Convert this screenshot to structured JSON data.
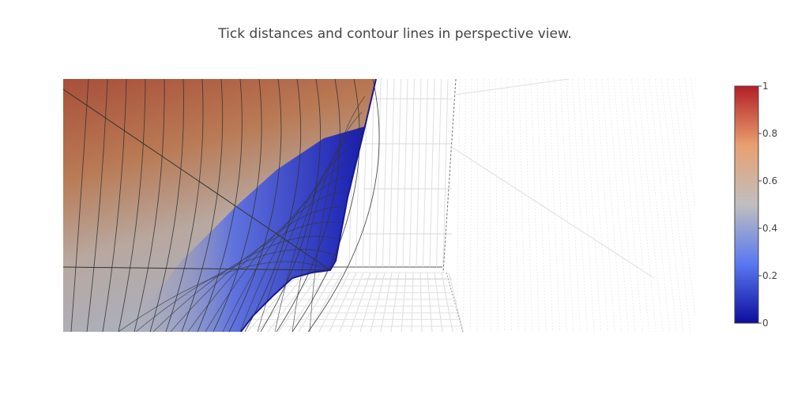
{
  "title": "Tick distances and contour lines in perspective view.",
  "chart_data": {
    "type": "surface",
    "title": "Tick distances and contour lines in perspective view.",
    "projection": "perspective",
    "contour_lines": true,
    "colorscale": {
      "name": "RdBu-like",
      "min": 0,
      "max": 1,
      "colors": [
        "#0d0d9e",
        "#5a78f0",
        "#bfbfbf",
        "#e8a070",
        "#b31f26"
      ],
      "ticks": [
        0,
        0.2,
        0.4,
        0.6,
        0.8,
        1
      ],
      "tick_labels": [
        "0",
        "0.2",
        "0.4",
        "0.6",
        "0.8",
        "1"
      ]
    }
  }
}
